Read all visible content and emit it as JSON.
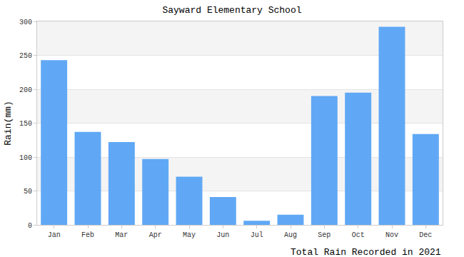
{
  "chart_data": {
    "type": "bar",
    "title": "Sayward Elementary School",
    "x_label": "Total Rain Recorded in 2021",
    "y_label": "Rain(mm)",
    "categories": [
      "Jan",
      "Feb",
      "Mar",
      "Apr",
      "May",
      "Jun",
      "Jul",
      "Aug",
      "Sep",
      "Oct",
      "Nov",
      "Dec"
    ],
    "values": [
      243,
      137,
      122,
      97,
      71,
      41,
      6,
      15,
      190,
      195,
      292,
      134
    ],
    "color": "#60a8f5",
    "ylim": [
      0,
      300
    ],
    "yticks": [
      0,
      50,
      100,
      150,
      200,
      250,
      300
    ],
    "grid": true
  }
}
